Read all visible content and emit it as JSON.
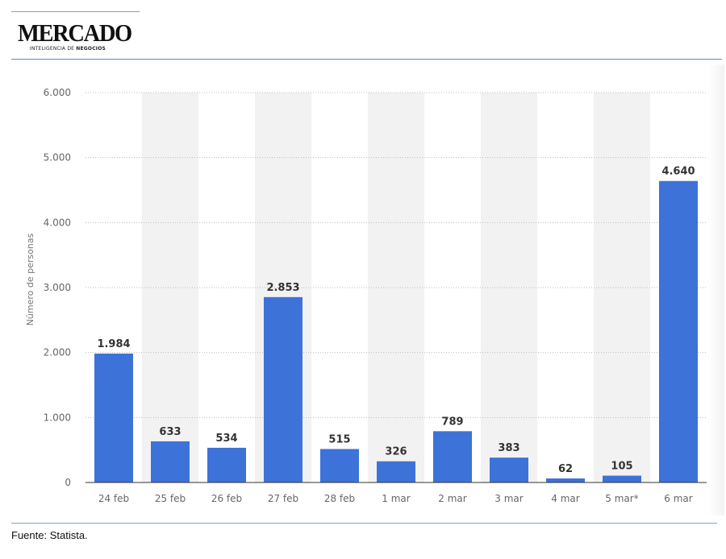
{
  "header": {
    "logo_main": "MERCADO",
    "logo_sub_regular": "INTELIGENCIA DE ",
    "logo_sub_bold": "NEGOCIOS"
  },
  "footer": {
    "source": "Fuente: Statista."
  },
  "colors": {
    "bar": "#3d72d9",
    "band": "#f2f2f2",
    "grid": "#bbbbbb",
    "rule": "#5b8fc6"
  },
  "chart_data": {
    "type": "bar",
    "categories": [
      "24 feb",
      "25 feb",
      "26 feb",
      "27 feb",
      "28 feb",
      "1 mar",
      "2 mar",
      "3 mar",
      "4 mar",
      "5 mar*",
      "6 mar"
    ],
    "values": [
      1984,
      633,
      534,
      2853,
      515,
      326,
      789,
      383,
      62,
      105,
      4640
    ],
    "value_labels": [
      "1.984",
      "633",
      "534",
      "2.853",
      "515",
      "326",
      "789",
      "383",
      "62",
      "105",
      "4.640"
    ],
    "ylabel": "Número de personas",
    "yticks": [
      0,
      1000,
      2000,
      3000,
      4000,
      5000,
      6000
    ],
    "ytick_labels": [
      "0",
      "1.000",
      "2.000",
      "3.000",
      "4.000",
      "5.000",
      "6.000"
    ],
    "ylim": [
      0,
      6000
    ],
    "grid": true
  }
}
